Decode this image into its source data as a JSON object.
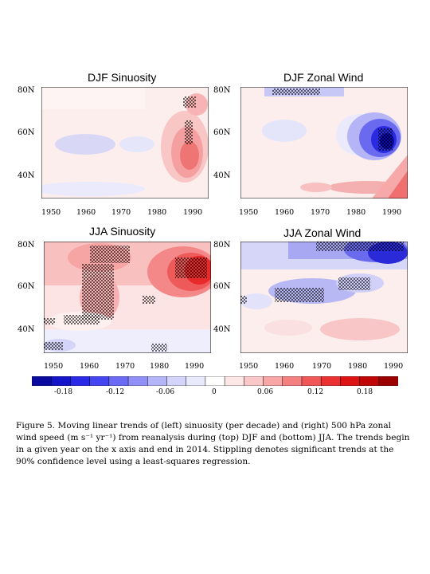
{
  "panels": [
    {
      "title": "DJF Sinuosity",
      "y_ticks": [
        "80N",
        "60N",
        "40N"
      ],
      "x_ticks": [
        "1950",
        "1960",
        "1970",
        "1980",
        "1990"
      ]
    },
    {
      "title": "DJF Zonal Wind",
      "y_ticks": [
        "80N",
        "60N",
        "40N"
      ],
      "x_ticks": [
        "1950",
        "1960",
        "1970",
        "1980",
        "1990"
      ]
    },
    {
      "title": "JJA Sinuosity",
      "y_ticks": [
        "80N",
        "60N",
        "40N"
      ],
      "x_ticks": [
        "1950",
        "1960",
        "1970",
        "1980",
        "1990"
      ]
    },
    {
      "title": "JJA Zonal Wind",
      "y_ticks": [
        "80N",
        "60N",
        "40N"
      ],
      "x_ticks": [
        "1950",
        "1960",
        "1970",
        "1980",
        "1990"
      ]
    }
  ],
  "colorbar": {
    "labels": [
      "-0.18",
      "-0.12",
      "-0.06",
      "0",
      "0.06",
      "0.12",
      "0.18"
    ],
    "colors": [
      "#0a0aa0",
      "#1414c8",
      "#2a2ae6",
      "#4646f0",
      "#6a6af4",
      "#9090f6",
      "#b4b4f8",
      "#d4d4fb",
      "#eaeafd",
      "#ffffff",
      "#fde6e6",
      "#fbc8c8",
      "#f8a6a6",
      "#f48080",
      "#f05858",
      "#ea3030",
      "#dc1414",
      "#c00606",
      "#9a0000"
    ]
  },
  "caption": "Figure 5. Moving linear trends of (left) sinuosity (per decade) and (right) 500 hPa zonal wind speed (m s⁻¹ yr⁻¹) from reanalysis during (top) DJF and (bottom) JJA. The trends begin in a given year on the x axis and end in 2014. Stippling denotes significant trends at the 90% confidence level using a least-squares regression."
}
